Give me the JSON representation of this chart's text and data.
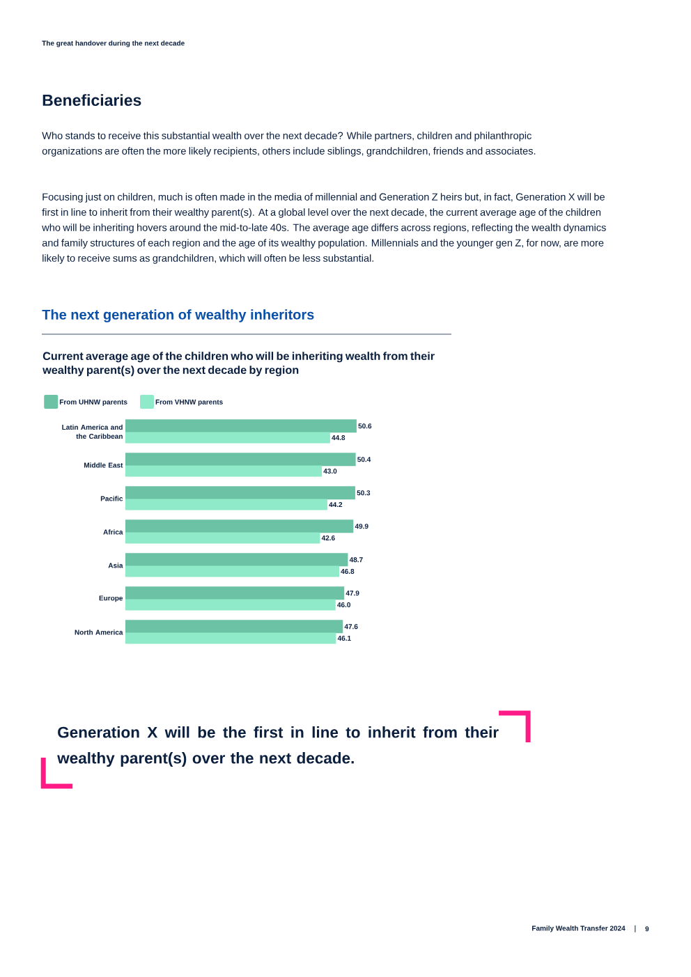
{
  "chart_data": {
    "type": "bar",
    "orientation": "horizontal",
    "title": "Current average age of the children who will be inheriting wealth from their wealthy parent(s) over the next decade by region",
    "categories": [
      "Latin America and the Caribbean",
      "Middle East",
      "Pacific",
      "Africa",
      "Asia",
      "Europe",
      "North America"
    ],
    "series": [
      {
        "name": "From UHNW parents",
        "color": "#6cc2a4",
        "values": [
          50.6,
          50.4,
          50.3,
          49.9,
          48.7,
          47.9,
          47.6
        ],
        "value_labels": [
          "50.6",
          "50.4",
          "50.3",
          "49.9",
          "48.7",
          "47.9",
          "47.6"
        ]
      },
      {
        "name": "From VHNW parents",
        "color": "#8eeac8",
        "values": [
          44.8,
          43.0,
          44.2,
          42.6,
          46.8,
          46.0,
          46.1
        ],
        "value_labels": [
          "44.8",
          "43.0",
          "44.2",
          "42.6",
          "46.8",
          "46.0",
          "46.1"
        ]
      }
    ],
    "legend": "top left",
    "annotations": [
      "The great handover during the next decade",
      "Beneficiaries",
      "Who stands to receive this substantial wealth over the next decade? While partners, children and philanthropic organizations are often the more likely recipients, others include siblings, grandchildren, friends and associates.",
      "Focusing just on children, much is often made in the media of millennial and Generation Z heirs but, in fact, Generation X will be first in line to inherit from their wealthy parent(s). At a global level over the next decade, the current average age of the children who will be inheriting hovers around the mid-to-late 40s. The average age differs across regions, reflecting the wealth dynamics and family structures of each region and the age of its wealthy population. Millennials and the younger gen Z, for now, are more likely to receive sums as grandchildren, which will often be less substantial.",
      "The next generation of wealthy inheritors",
      "Generation X will be the first in line to inherit from their wealthy parent(s) over the next decade.",
      "Family Wealth Transfer 2024",
      "9"
    ]
  }
}
